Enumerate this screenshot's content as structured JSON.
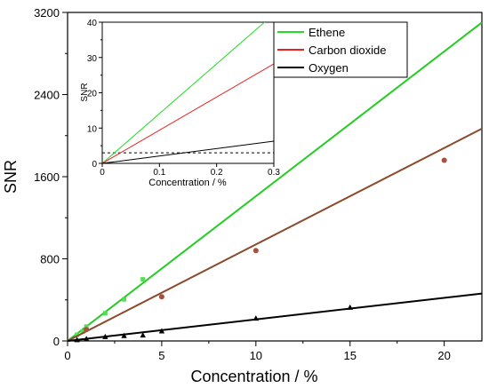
{
  "chart_data": [
    {
      "type": "scatter",
      "xlabel": "Concentration / %",
      "ylabel": "SNR",
      "xlim": [
        0,
        22
      ],
      "ylim": [
        0,
        3200
      ],
      "x_ticks": [
        0,
        5,
        10,
        15,
        20
      ],
      "y_ticks": [
        0,
        800,
        1600,
        2400,
        3200
      ],
      "legend_position": "top-right",
      "series": [
        {
          "name": "Ethene",
          "color": "#22dd22",
          "marker": "square",
          "fit": {
            "slope": 141,
            "intercept": 0
          },
          "points": [
            [
              0.5,
              60
            ],
            [
              0.8,
              90
            ],
            [
              1,
              140
            ],
            [
              2,
              270
            ],
            [
              3,
              405
            ],
            [
              4,
              600
            ]
          ]
        },
        {
          "name": "Carbon dioxide",
          "color": "#e82020",
          "marker": "circle",
          "fit": {
            "slope": 94,
            "intercept": 0
          },
          "points": [
            [
              1,
              110
            ],
            [
              5,
              430
            ],
            [
              10,
              880
            ],
            [
              20,
              1760
            ]
          ]
        },
        {
          "name": "Oxygen",
          "color": "#000000",
          "marker": "triangle",
          "fit": {
            "slope": 21,
            "intercept": 0
          },
          "points": [
            [
              0.5,
              10
            ],
            [
              1,
              20
            ],
            [
              2,
              40
            ],
            [
              3,
              50
            ],
            [
              4,
              55
            ],
            [
              5,
              95
            ],
            [
              10,
              220
            ],
            [
              15,
              325
            ]
          ]
        }
      ]
    },
    {
      "type": "line",
      "xlabel": "Concentration / %",
      "ylabel": "SNR",
      "xlim": [
        0,
        0.3
      ],
      "ylim": [
        0,
        40
      ],
      "x_ticks": [
        0,
        0.1,
        0.2,
        0.3
      ],
      "x_tick_labels": [
        "0",
        "0.1",
        "0.2",
        "0.3"
      ],
      "y_ticks": [
        0,
        5,
        10,
        15,
        20,
        25,
        30,
        35,
        40
      ],
      "y_tick_labels": [
        "0",
        "",
        "10",
        "",
        "20",
        "",
        "30",
        "",
        "40"
      ],
      "threshold_dashed_y": 3,
      "series": [
        {
          "name": "Ethene",
          "color": "#22dd22",
          "slope": 141,
          "intercept": 0
        },
        {
          "name": "Carbon dioxide",
          "color": "#e82020",
          "slope": 94,
          "intercept": 0
        },
        {
          "name": "Oxygen",
          "color": "#000000",
          "slope": 21,
          "intercept": 0
        }
      ]
    }
  ]
}
